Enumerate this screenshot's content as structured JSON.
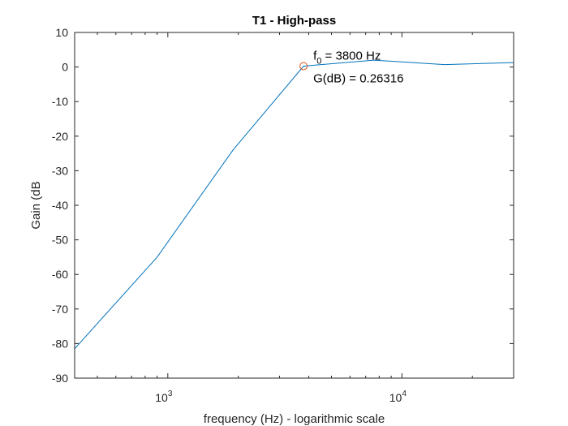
{
  "chart_data": {
    "type": "line",
    "title": "T1 - High-pass",
    "xlabel": "frequency (Hz) - logarithmic scale",
    "ylabel": "Gain (dB",
    "xscale": "log",
    "xlim": [
      400,
      30000
    ],
    "ylim": [
      -90,
      10
    ],
    "yticks": [
      10,
      0,
      -10,
      -20,
      -30,
      -40,
      -50,
      -60,
      -70,
      -80,
      -90
    ],
    "xticks": [
      {
        "value": 1000,
        "base": "10",
        "exp": "3"
      },
      {
        "value": 10000,
        "base": "10",
        "exp": "4"
      }
    ],
    "grid": false,
    "series": [
      {
        "color": "#0072bd",
        "x": [
          400,
          900,
          1900,
          3800,
          7600,
          15200,
          30000
        ],
        "y": [
          -81.5,
          -55,
          -24,
          0.26316,
          2,
          0.7,
          1.3
        ]
      }
    ],
    "marker": {
      "x": 3800,
      "y": 0.26316,
      "color": "#d95319"
    },
    "annotation": {
      "f0_prefix": "f",
      "f0_sub": "0",
      "f0_value": " = 3800 Hz",
      "gain_text": "G(dB) = 0.26316"
    }
  }
}
